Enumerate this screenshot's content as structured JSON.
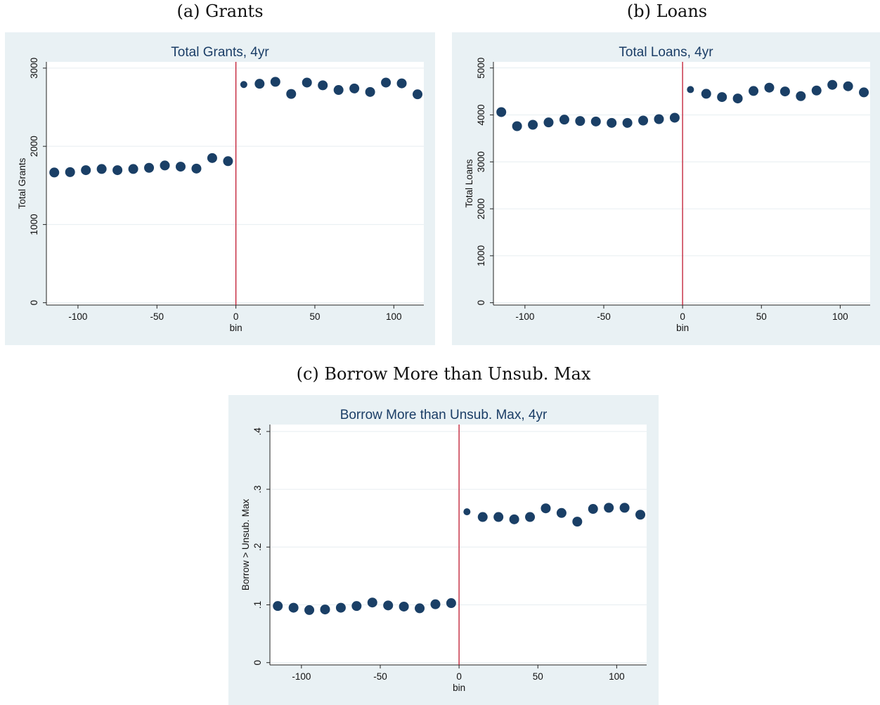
{
  "captions": {
    "a": "(a) Grants",
    "b": "(b) Loans",
    "c": "(c) Borrow More than Unsub. Max"
  },
  "colors": {
    "marker": "#1a3f66",
    "cutoff": "#c0182f",
    "grid": "#e6eef1",
    "panel_bg": "#e9f1f4"
  },
  "chart_data": [
    {
      "type": "scatter",
      "title": "Total Grants, 4yr",
      "xlabel": "bin",
      "ylabel": "Total Grants",
      "xlim": [
        -120,
        119
      ],
      "ylim": [
        -30,
        3080
      ],
      "xticks": [
        -100,
        -50,
        0,
        50,
        100
      ],
      "xtick_labels": [
        "-100",
        "-50",
        "0",
        "50",
        "100"
      ],
      "yticks": [
        0,
        1000,
        2000,
        3000
      ],
      "ytick_labels": [
        "0",
        "1000",
        "2000",
        "3000"
      ],
      "cutoff": 0,
      "grid": true,
      "x": [
        -115,
        -105,
        -95,
        -85,
        -75,
        -65,
        -55,
        -45,
        -35,
        -25,
        -15,
        -5,
        5,
        15,
        25,
        35,
        45,
        55,
        65,
        75,
        85,
        95,
        105,
        115
      ],
      "y": [
        1665,
        1670,
        1695,
        1710,
        1695,
        1710,
        1725,
        1755,
        1740,
        1715,
        1850,
        1810,
        2790,
        2800,
        2825,
        2670,
        2815,
        2780,
        2720,
        2740,
        2695,
        2815,
        2805,
        2665
      ]
    },
    {
      "type": "scatter",
      "title": "Total Loans, 4yr",
      "xlabel": "bin",
      "ylabel": "Total Loans",
      "xlim": [
        -120,
        119
      ],
      "ylim": [
        -50,
        5130
      ],
      "xticks": [
        -100,
        -50,
        0,
        50,
        100
      ],
      "xtick_labels": [
        "-100",
        "-50",
        "0",
        "50",
        "100"
      ],
      "yticks": [
        0,
        1000,
        2000,
        3000,
        4000,
        5000
      ],
      "ytick_labels": [
        "0",
        "1000",
        "2000",
        "3000",
        "4000",
        "5000"
      ],
      "cutoff": 0,
      "grid": true,
      "x": [
        -115,
        -105,
        -95,
        -85,
        -75,
        -65,
        -55,
        -45,
        -35,
        -25,
        -15,
        -5,
        5,
        15,
        25,
        35,
        45,
        55,
        65,
        75,
        85,
        95,
        105,
        115
      ],
      "y": [
        4060,
        3760,
        3790,
        3840,
        3900,
        3870,
        3860,
        3830,
        3830,
        3880,
        3910,
        3940,
        4540,
        4450,
        4380,
        4350,
        4510,
        4580,
        4500,
        4400,
        4520,
        4640,
        4610,
        4480
      ]
    },
    {
      "type": "scatter",
      "title": "Borrow More than Unsub. Max, 4yr",
      "xlabel": "bin",
      "ylabel": "Borrow > Unsub. Max",
      "xlim": [
        -120,
        119
      ],
      "ylim": [
        -0.004,
        0.412
      ],
      "xticks": [
        -100,
        -50,
        0,
        50,
        100
      ],
      "xtick_labels": [
        "-100",
        "-50",
        "0",
        "50",
        "100"
      ],
      "yticks": [
        0,
        0.1,
        0.2,
        0.3,
        0.4
      ],
      "ytick_labels": [
        "0",
        ".1",
        ".2",
        ".3",
        ".4"
      ],
      "cutoff": 0,
      "grid": true,
      "x": [
        -115,
        -105,
        -95,
        -85,
        -75,
        -65,
        -55,
        -45,
        -35,
        -25,
        -15,
        -5,
        5,
        15,
        25,
        35,
        45,
        55,
        65,
        75,
        85,
        95,
        105,
        115
      ],
      "y": [
        0.098,
        0.095,
        0.091,
        0.092,
        0.095,
        0.098,
        0.104,
        0.099,
        0.097,
        0.094,
        0.101,
        0.103,
        0.261,
        0.252,
        0.252,
        0.248,
        0.252,
        0.267,
        0.259,
        0.244,
        0.266,
        0.268,
        0.268,
        0.256
      ]
    }
  ]
}
